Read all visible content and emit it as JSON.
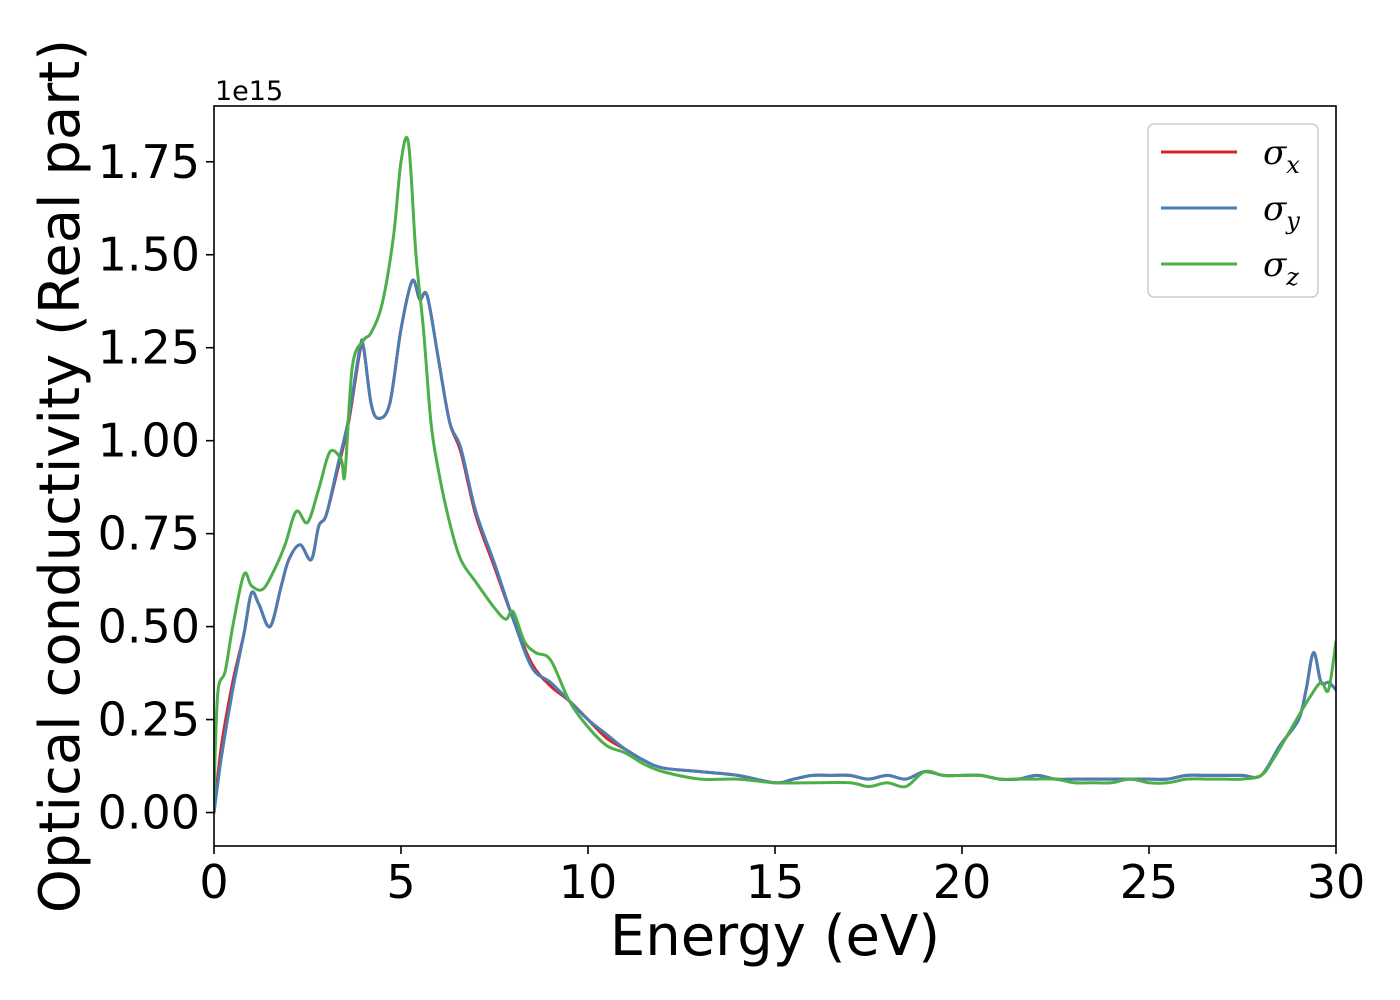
{
  "chart_data": {
    "type": "line",
    "title": "",
    "xlabel": "Energy (eV)",
    "ylabel": "Optical conductivity (Real part)",
    "y_offset_label": "1e15",
    "xlim": [
      0,
      30
    ],
    "ylim": [
      -0.09,
      1.9
    ],
    "xticks": [
      0,
      5,
      10,
      15,
      20,
      25,
      30
    ],
    "xtick_labels": [
      "0",
      "5",
      "10",
      "15",
      "20",
      "25",
      "30"
    ],
    "yticks": [
      0.0,
      0.25,
      0.5,
      0.75,
      1.0,
      1.25,
      1.5,
      1.75
    ],
    "ytick_labels": [
      "0.00",
      "0.25",
      "0.50",
      "0.75",
      "1.00",
      "1.25",
      "1.50",
      "1.75"
    ],
    "grid": false,
    "legend_position": "top-right",
    "series": [
      {
        "name": "σ_x",
        "legend_base": "σ",
        "legend_sub": "x",
        "color": "#d62728",
        "x": [
          0,
          0.2,
          0.5,
          0.8,
          1.0,
          1.2,
          1.5,
          1.8,
          2.0,
          2.3,
          2.6,
          2.8,
          3.0,
          3.3,
          3.6,
          3.9,
          4.0,
          4.2,
          4.4,
          4.7,
          5.0,
          5.3,
          5.5,
          5.7,
          6.0,
          6.3,
          6.6,
          7.0,
          7.5,
          8.0,
          8.5,
          9.0,
          9.5,
          10.0,
          10.5,
          11.0,
          11.5,
          12.0,
          13.0,
          14.0,
          15.0,
          15.5,
          16.0,
          16.5,
          17.0,
          17.5,
          18.0,
          18.5,
          19.0,
          19.5,
          20.0,
          20.5,
          21.0,
          21.5,
          22.0,
          22.5,
          23.0,
          23.5,
          24.0,
          24.5,
          25.0,
          25.5,
          26.0,
          26.5,
          27.0,
          27.5,
          28.0,
          28.5,
          29.0,
          29.2,
          29.4,
          29.6,
          29.8,
          30.0
        ],
        "y": [
          0.0,
          0.18,
          0.35,
          0.48,
          0.59,
          0.56,
          0.5,
          0.61,
          0.68,
          0.72,
          0.68,
          0.77,
          0.8,
          0.92,
          1.05,
          1.24,
          1.25,
          1.1,
          1.06,
          1.1,
          1.3,
          1.43,
          1.38,
          1.39,
          1.22,
          1.05,
          0.97,
          0.8,
          0.66,
          0.52,
          0.4,
          0.34,
          0.3,
          0.25,
          0.2,
          0.17,
          0.14,
          0.12,
          0.11,
          0.1,
          0.08,
          0.09,
          0.1,
          0.1,
          0.1,
          0.09,
          0.1,
          0.09,
          0.11,
          0.1,
          0.1,
          0.1,
          0.09,
          0.09,
          0.1,
          0.09,
          0.09,
          0.09,
          0.09,
          0.09,
          0.09,
          0.09,
          0.1,
          0.1,
          0.1,
          0.1,
          0.1,
          0.18,
          0.25,
          0.33,
          0.43,
          0.35,
          0.35,
          0.33
        ]
      },
      {
        "name": "σ_y",
        "legend_base": "σ",
        "legend_sub": "y",
        "color": "#4a7eb4",
        "x": [
          0,
          0.2,
          0.5,
          0.8,
          1.0,
          1.2,
          1.5,
          1.8,
          2.0,
          2.3,
          2.6,
          2.8,
          3.0,
          3.3,
          3.6,
          3.9,
          4.0,
          4.2,
          4.4,
          4.7,
          5.0,
          5.3,
          5.5,
          5.7,
          6.0,
          6.3,
          6.6,
          7.0,
          7.5,
          8.0,
          8.5,
          9.0,
          9.5,
          10.0,
          10.5,
          11.0,
          11.5,
          12.0,
          13.0,
          14.0,
          15.0,
          15.5,
          16.0,
          16.5,
          17.0,
          17.5,
          18.0,
          18.5,
          19.0,
          19.5,
          20.0,
          20.5,
          21.0,
          21.5,
          22.0,
          22.5,
          23.0,
          23.5,
          24.0,
          24.5,
          25.0,
          25.5,
          26.0,
          26.5,
          27.0,
          27.5,
          28.0,
          28.5,
          29.0,
          29.2,
          29.4,
          29.6,
          29.8,
          30.0
        ],
        "y": [
          0.0,
          0.15,
          0.33,
          0.48,
          0.59,
          0.56,
          0.5,
          0.61,
          0.68,
          0.72,
          0.68,
          0.77,
          0.8,
          0.93,
          1.06,
          1.25,
          1.25,
          1.1,
          1.06,
          1.1,
          1.3,
          1.43,
          1.38,
          1.39,
          1.22,
          1.05,
          0.98,
          0.81,
          0.67,
          0.52,
          0.39,
          0.35,
          0.3,
          0.25,
          0.21,
          0.17,
          0.14,
          0.12,
          0.11,
          0.1,
          0.08,
          0.09,
          0.1,
          0.1,
          0.1,
          0.09,
          0.1,
          0.09,
          0.11,
          0.1,
          0.1,
          0.1,
          0.09,
          0.09,
          0.1,
          0.09,
          0.09,
          0.09,
          0.09,
          0.09,
          0.09,
          0.09,
          0.1,
          0.1,
          0.1,
          0.1,
          0.1,
          0.18,
          0.25,
          0.33,
          0.43,
          0.35,
          0.35,
          0.33
        ]
      },
      {
        "name": "σ_z",
        "legend_base": "σ",
        "legend_sub": "z",
        "color": "#4daf4a",
        "x": [
          0,
          0.1,
          0.3,
          0.5,
          0.8,
          1.0,
          1.3,
          1.6,
          1.9,
          2.2,
          2.5,
          2.8,
          3.1,
          3.4,
          3.5,
          3.7,
          4.0,
          4.2,
          4.5,
          4.8,
          5.0,
          5.2,
          5.4,
          5.6,
          5.8,
          6.0,
          6.3,
          6.6,
          7.0,
          7.5,
          7.8,
          8.0,
          8.3,
          8.6,
          9.0,
          9.5,
          10.0,
          10.5,
          11.0,
          11.5,
          12.0,
          13.0,
          14.0,
          15.0,
          16.0,
          17.0,
          17.5,
          18.0,
          18.5,
          19.0,
          19.5,
          20.0,
          20.5,
          21.0,
          21.5,
          22.0,
          22.5,
          23.0,
          23.5,
          24.0,
          24.5,
          25.0,
          25.5,
          26.0,
          26.5,
          27.0,
          27.5,
          28.0,
          28.3,
          28.6,
          29.0,
          29.3,
          29.6,
          29.8,
          30.0
        ],
        "y": [
          0.05,
          0.32,
          0.38,
          0.5,
          0.64,
          0.61,
          0.6,
          0.65,
          0.72,
          0.81,
          0.78,
          0.87,
          0.97,
          0.95,
          0.91,
          1.2,
          1.27,
          1.29,
          1.37,
          1.55,
          1.75,
          1.8,
          1.5,
          1.3,
          1.05,
          0.92,
          0.78,
          0.68,
          0.62,
          0.55,
          0.52,
          0.54,
          0.46,
          0.43,
          0.41,
          0.3,
          0.23,
          0.18,
          0.16,
          0.13,
          0.11,
          0.09,
          0.09,
          0.08,
          0.08,
          0.08,
          0.07,
          0.08,
          0.07,
          0.11,
          0.1,
          0.1,
          0.1,
          0.09,
          0.09,
          0.09,
          0.09,
          0.08,
          0.08,
          0.08,
          0.09,
          0.08,
          0.08,
          0.09,
          0.09,
          0.09,
          0.09,
          0.1,
          0.14,
          0.19,
          0.26,
          0.31,
          0.35,
          0.33,
          0.46
        ]
      }
    ]
  }
}
